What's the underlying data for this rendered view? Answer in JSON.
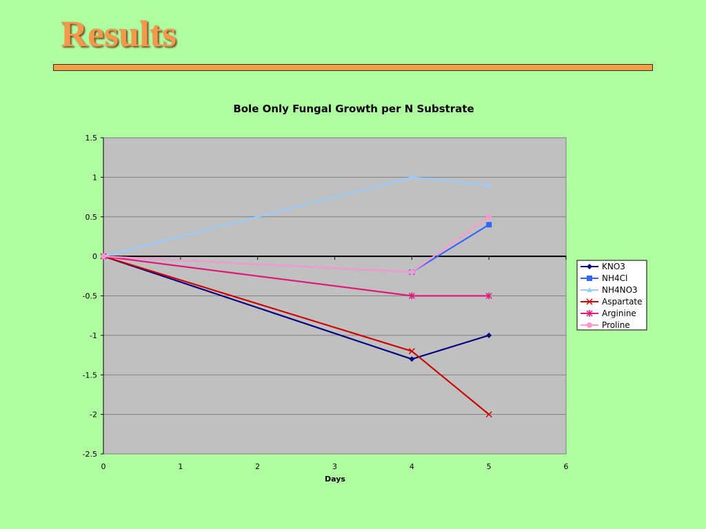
{
  "slide": {
    "title": "Results"
  },
  "colors": {
    "background": "#b0fca0",
    "title": "#f29a4a",
    "rule": "#f6a04a",
    "plot_area": "#c0c0c0"
  },
  "chart_data": {
    "type": "line",
    "title": "Bole Only Fungal Growth per N Substrate",
    "xlabel": "Days",
    "ylabel": "",
    "xlim": [
      0,
      6
    ],
    "ylim": [
      -2.5,
      1.5
    ],
    "x_ticks": [
      "0",
      "1",
      "2",
      "3",
      "4",
      "5",
      "6"
    ],
    "y_ticks": [
      "1.5",
      "1",
      "0.5",
      "0",
      "-0.5",
      "-1",
      "-1.5",
      "-2",
      "-2.5"
    ],
    "grid": true,
    "legend_position": "right",
    "x": [
      0,
      4,
      5
    ],
    "series": [
      {
        "name": "KNO3",
        "values": [
          0,
          -1.3,
          -1.0
        ],
        "color": "#000080",
        "marker": "diamond"
      },
      {
        "name": "NH4Cl",
        "values": [
          0,
          -0.2,
          0.4
        ],
        "color": "#3366ff",
        "marker": "square"
      },
      {
        "name": "NH4NO3",
        "values": [
          0,
          1.0,
          0.9
        ],
        "color": "#99ccff",
        "marker": "triangle"
      },
      {
        "name": "Aspartate",
        "values": [
          0,
          -1.2,
          -2.0
        ],
        "color": "#cc0000",
        "marker": "x"
      },
      {
        "name": "Arginine",
        "values": [
          0,
          -0.5,
          -0.5
        ],
        "color": "#e0197d",
        "marker": "star"
      },
      {
        "name": "Proline",
        "values": [
          0,
          -0.2,
          0.5
        ],
        "color": "#ff99cc",
        "marker": "circle"
      }
    ]
  }
}
